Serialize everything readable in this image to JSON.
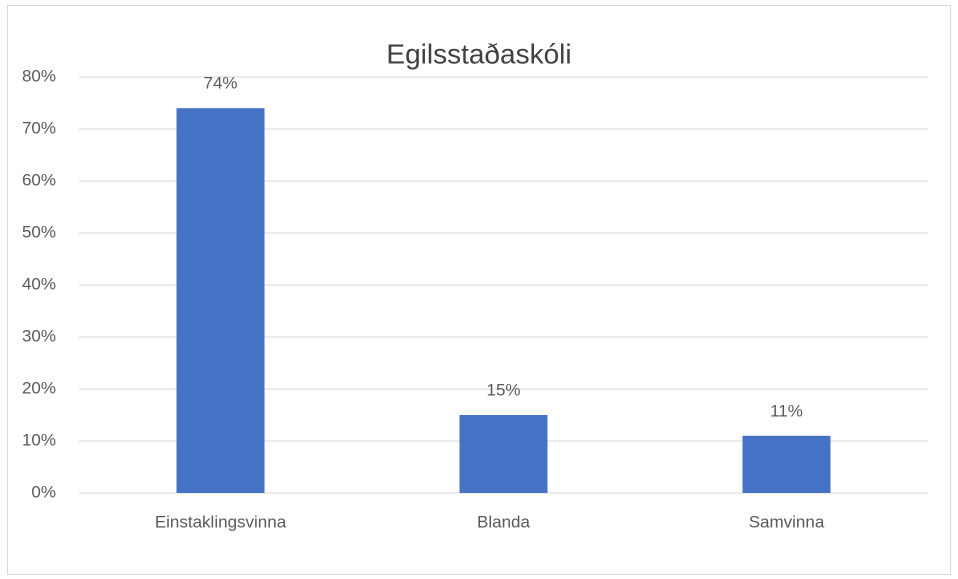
{
  "chart_data": {
    "type": "bar",
    "title": "Egilsstaðaskóli",
    "categories": [
      "Einstaklingsvinna",
      "Blanda",
      "Samvinna"
    ],
    "values": [
      74,
      15,
      11
    ],
    "value_labels": [
      "74%",
      "15%",
      "11%"
    ],
    "color": "#4472c4",
    "ylim": [
      0,
      80
    ],
    "yticks": [
      {
        "value": 0,
        "label": "0%"
      },
      {
        "value": 10,
        "label": "10%"
      },
      {
        "value": 20,
        "label": "20%"
      },
      {
        "value": 30,
        "label": "30%"
      },
      {
        "value": 40,
        "label": "40%"
      },
      {
        "value": 50,
        "label": "50%"
      },
      {
        "value": 60,
        "label": "60%"
      },
      {
        "value": 70,
        "label": "70%"
      },
      {
        "value": 80,
        "label": "80%"
      }
    ],
    "grid": true
  }
}
